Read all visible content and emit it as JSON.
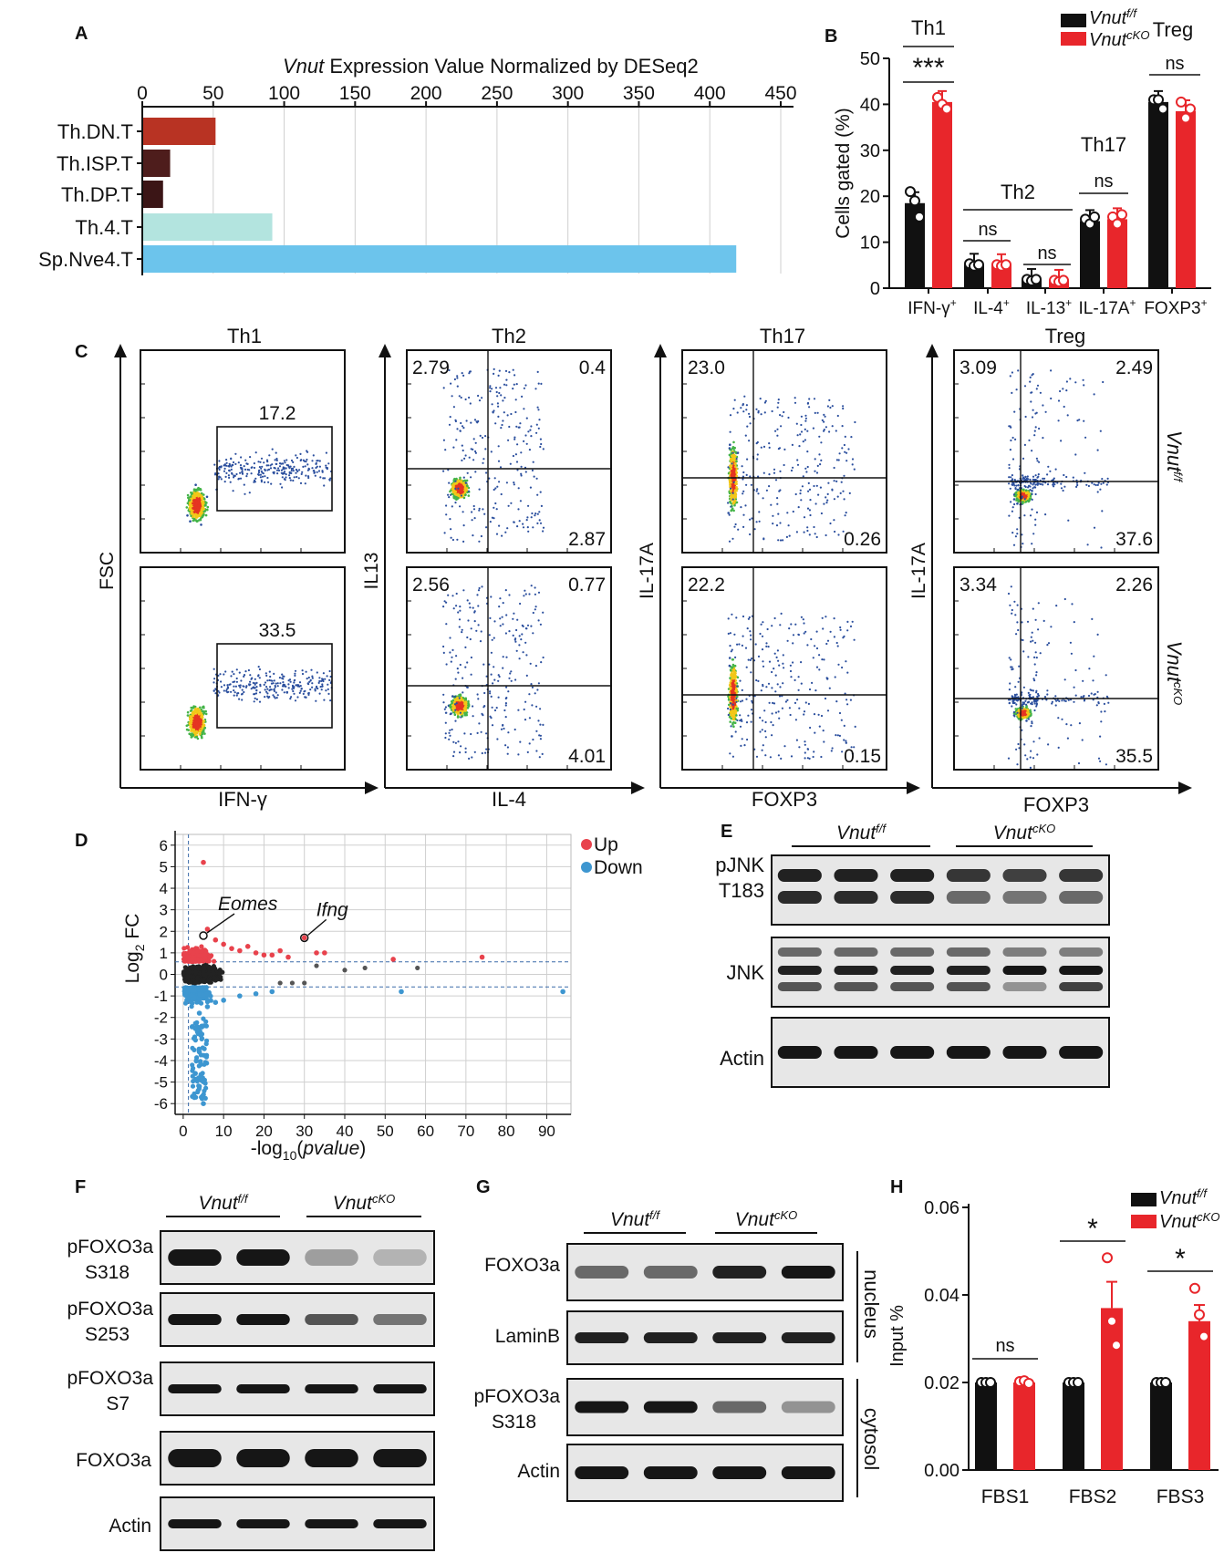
{
  "panels": {
    "a": "A",
    "b": "B",
    "c": "C",
    "d": "D",
    "e": "E",
    "f": "F",
    "g": "G",
    "h": "H"
  },
  "colors": {
    "wt": "#111111",
    "cko": "#e8262b",
    "up": "#e8424c",
    "down": "#3d96d0",
    "neutral": "#222222"
  },
  "genotype": {
    "wt_base": "Vnut",
    "wt_sup": "f/f",
    "cko_base": "Vnut",
    "cko_sup": "cKO"
  },
  "panel_a": {
    "title_italic": "Vnut",
    "title_rest": " Expression Value Normalized by DESeq2",
    "ticks": [
      "0",
      "50",
      "100",
      "150",
      "200",
      "250",
      "300",
      "350",
      "400",
      "450"
    ]
  },
  "panel_b": {
    "ylabel": "Cells gated (%)",
    "yticks": [
      "0",
      "10",
      "20",
      "30",
      "40",
      "50"
    ],
    "categories": [
      "IFN-γ",
      "IL-4",
      "IL-13",
      "IL-17A",
      "FOXP3"
    ],
    "cat_sup": "+",
    "group_labels": {
      "th1": "Th1",
      "th2": "Th2",
      "th17": "Th17",
      "treg": "Treg"
    },
    "sig": {
      "th1": "***",
      "il4": "ns",
      "il13": "ns",
      "th17": "ns",
      "treg": "ns"
    }
  },
  "panel_c": {
    "titles": [
      "Th1",
      "Th2",
      "Th17",
      "Treg"
    ],
    "ylabels": [
      "FSC",
      "IL13",
      "IL-17A",
      "IL-17A"
    ],
    "xlabels": [
      "IFN-γ",
      "IL-4",
      "FOXP3",
      "FOXP3"
    ],
    "th1": {
      "top": "17.2",
      "bottom": "33.5"
    },
    "th2": {
      "top": {
        "ul": "2.79",
        "ur": "0.4",
        "lr": "2.87"
      },
      "bottom": {
        "ul": "2.56",
        "ur": "0.77",
        "lr": "4.01"
      }
    },
    "th17": {
      "top": {
        "ul": "23.0",
        "lr": "0.26"
      },
      "bottom": {
        "ul": "22.2",
        "lr": "0.15"
      }
    },
    "treg": {
      "top": {
        "ul": "3.09",
        "ur": "2.49",
        "lr": "37.6"
      },
      "bottom": {
        "ul": "3.34",
        "ur": "2.26",
        "lr": "35.5"
      }
    }
  },
  "panel_d": {
    "ylabel_main": "Log",
    "ylabel_sub": "2",
    "ylabel_end": " FC",
    "xlabel_start": "-log",
    "xlabel_sub": "10",
    "xlabel_mid": "(",
    "xlabel_italic": "pvalue",
    "xlabel_end": ")",
    "yticks": [
      "6",
      "5",
      "4",
      "3",
      "2",
      "1",
      "0",
      "-1",
      "-2",
      "-3",
      "-4",
      "-5",
      "-6"
    ],
    "xticks": [
      "0",
      "10",
      "20",
      "30",
      "40",
      "50",
      "60",
      "70",
      "80",
      "90"
    ],
    "legend": {
      "up": "Up",
      "down": "Down"
    },
    "genes": {
      "eomes": "Eomes",
      "ifng": "Ifng"
    }
  },
  "panel_e": {
    "pjnk": "pJNK",
    "pjnk_site": "T183",
    "jnk": "JNK",
    "actin": "Actin"
  },
  "panel_f": {
    "rows": [
      [
        "pFOXO3a",
        "S318"
      ],
      [
        "pFOXO3a",
        "S253"
      ],
      [
        "pFOXO3a",
        "S7"
      ],
      [
        "FOXO3a",
        ""
      ],
      [
        "Actin",
        ""
      ]
    ]
  },
  "panel_g": {
    "foxo3a": "FOXO3a",
    "laminb": "LaminB",
    "pfoxo": "pFOXO3a",
    "pfoxo_site": "S318",
    "actin": "Actin",
    "nucleus": "nucleus",
    "cytosol": "cytosol"
  },
  "panel_h": {
    "ylabel": "Input %",
    "yticks": [
      "0.00",
      "0.02",
      "0.04",
      "0.06"
    ],
    "categories": [
      "FBS1",
      "FBS2",
      "FBS3"
    ],
    "sig": [
      "ns",
      "*",
      "*"
    ]
  },
  "chart_data": [
    {
      "type": "bar",
      "title": "Vnut Expression Value Normalized by DESeq2",
      "orientation": "horizontal",
      "categories": [
        "Th.DN.T",
        "Th.ISP.T",
        "Th.DP.T",
        "Th.4.T",
        "Sp.Nve4.T"
      ],
      "values": [
        51,
        19,
        14,
        91,
        418
      ],
      "colors": [
        "#b83323",
        "#4e1d1c",
        "#3b1516",
        "#b3e4df",
        "#6cc4ec"
      ],
      "xlim": [
        0,
        450
      ]
    },
    {
      "type": "bar",
      "ylabel": "Cells gated (%)",
      "categories": [
        "IFN-γ+",
        "IL-4+",
        "IL-13+",
        "IL-17A+",
        "FOXP3+"
      ],
      "series": [
        {
          "name": "Vnut f/f",
          "values": [
            18.5,
            5.1,
            1.8,
            14.6,
            40.5
          ],
          "points": [
            [
              21,
              19,
              15.5
            ],
            [
              5.3,
              4.8,
              5.1
            ],
            [
              1.9,
              1.6,
              1.9
            ],
            [
              15,
              14,
              15.5
            ],
            [
              41,
              41,
              39
            ]
          ]
        },
        {
          "name": "Vnut cKO",
          "values": [
            40.5,
            5.0,
            1.6,
            15.0,
            38.5
          ],
          "points": [
            [
              41.5,
              40,
              39
            ],
            [
              5.1,
              4.8,
              5.1
            ],
            [
              1.7,
              1.4,
              1.7
            ],
            [
              15.5,
              14,
              16
            ],
            [
              40.5,
              37,
              39
            ]
          ]
        }
      ],
      "ylim": [
        0,
        50
      ]
    },
    {
      "type": "scatter",
      "xlabel": "-log10(pvalue)",
      "ylabel": "Log2 FC",
      "xlim": [
        -2,
        96
      ],
      "ylim": [
        -6.5,
        6.5
      ],
      "series": [
        {
          "name": "Up",
          "points": [
            [
              5,
              5.2
            ],
            [
              6,
              2.1
            ],
            [
              8,
              1.6
            ],
            [
              10,
              1.4
            ],
            [
              12,
              1.2
            ],
            [
              14,
              1.1
            ],
            [
              16,
              1.3
            ],
            [
              18,
              1.0
            ],
            [
              20,
              0.9
            ],
            [
              22,
              0.9
            ],
            [
              24,
              1.1
            ],
            [
              26,
              0.8
            ],
            [
              30,
              1.7
            ],
            [
              33,
              1.0
            ],
            [
              35,
              1.0
            ],
            [
              52,
              0.7
            ],
            [
              74,
              0.8
            ]
          ]
        },
        {
          "name": "Down",
          "points": [
            [
              5,
              -6.0
            ],
            [
              4,
              -5.2
            ],
            [
              3,
              -4.6
            ],
            [
              4,
              -3.6
            ],
            [
              3,
              -2.5
            ],
            [
              4,
              -1.8
            ],
            [
              6,
              -1.5
            ],
            [
              8,
              -1.3
            ],
            [
              10,
              -1.2
            ],
            [
              14,
              -1.0
            ],
            [
              18,
              -0.9
            ],
            [
              22,
              -0.8
            ],
            [
              54,
              -0.8
            ],
            [
              94,
              -0.8
            ]
          ]
        },
        {
          "name": "Eomes",
          "points": [
            [
              5,
              1.8
            ]
          ]
        },
        {
          "name": "Ifng",
          "points": [
            [
              30,
              1.7
            ]
          ]
        }
      ]
    },
    {
      "type": "bar",
      "ylabel": "Input %",
      "categories": [
        "FBS1",
        "FBS2",
        "FBS3"
      ],
      "series": [
        {
          "name": "Vnut f/f",
          "values": [
            0.02,
            0.02,
            0.02
          ],
          "err": [
            0.0003,
            0.0003,
            0.0003
          ]
        },
        {
          "name": "Vnut cKO",
          "values": [
            0.02,
            0.037,
            0.034
          ],
          "err": [
            0.0003,
            0.006,
            0.0037
          ],
          "points": [
            [
              0.0202,
              0.0204,
              0.0198
            ],
            [
              0.0485,
              0.034,
              0.0285
            ],
            [
              0.0415,
              0.0355,
              0.0305
            ]
          ]
        }
      ],
      "ylim": [
        0,
        0.06
      ]
    }
  ]
}
